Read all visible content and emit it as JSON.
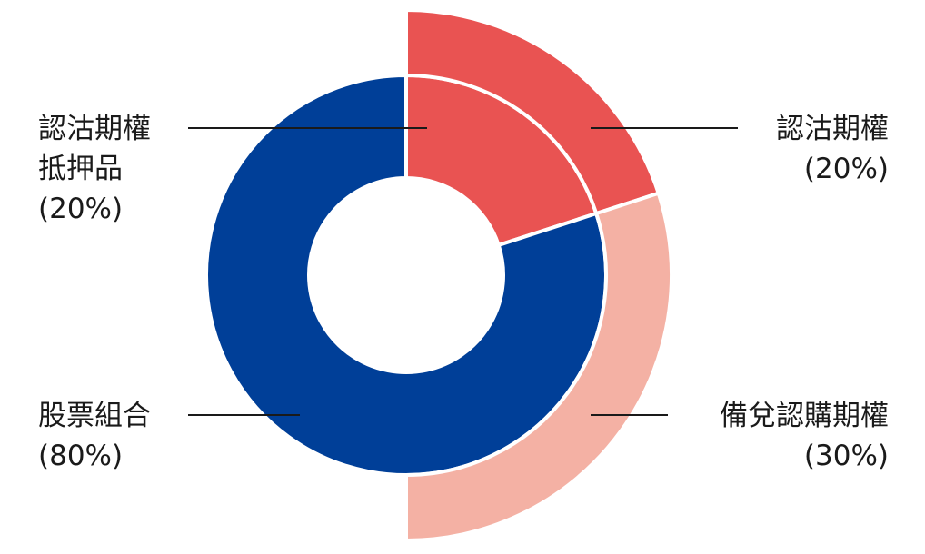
{
  "chart_data": {
    "type": "pie",
    "subtype": "nested-donut",
    "title": "",
    "colors": {
      "stock_portfolio": "#003f98",
      "call_collateral": "#e95352",
      "call_options": "#e95352",
      "covered_calls": "#f4b1a4"
    },
    "inner_ring": [
      {
        "key": "stock_portfolio",
        "label_lines": [
          "股票組合"
        ],
        "pct_text": "(80%)",
        "value": 80
      },
      {
        "key": "call_collateral",
        "label_lines": [
          "認沽期權",
          "抵押品"
        ],
        "pct_text": "(20%)",
        "value": 20
      }
    ],
    "outer_ring": [
      {
        "key": "call_options",
        "label_lines": [
          "認沽期權"
        ],
        "pct_text": "(20%)",
        "value": 20
      },
      {
        "key": "covered_calls",
        "label_lines": [
          "備兌認購期權"
        ],
        "pct_text": "(30%)",
        "value": 30
      }
    ]
  }
}
